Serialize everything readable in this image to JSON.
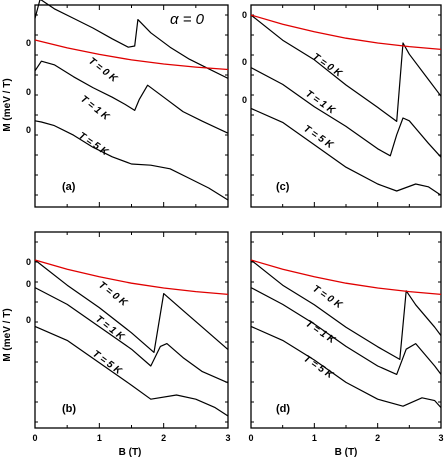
{
  "figure": {
    "alpha_label": "α = 0",
    "ylabel": "M (meV / T)",
    "xlabel": "B (T)"
  },
  "chart_data": [
    {
      "type": "line",
      "panel_label": "(a)",
      "xlabel": "",
      "ylabel": "M (meV / T)",
      "xlim": [
        0,
        3
      ],
      "xticks": [],
      "y_zero_labels": [
        "0",
        "0",
        "0"
      ],
      "curve_labels": [
        "T = 0 K",
        "T = 1 K",
        "T = 5 K"
      ],
      "series": [
        {
          "name": "T = 0 K",
          "color": "#000000",
          "x": [
            0,
            0.08,
            0.3,
            0.6,
            0.9,
            1.2,
            1.45,
            1.55,
            1.6,
            1.8,
            2.1,
            2.4,
            2.7,
            3.0
          ],
          "y": [
            0.9,
            1.7,
            1.3,
            0.9,
            0.5,
            0.05,
            -0.3,
            -0.25,
            0.85,
            0.3,
            -0.3,
            -0.8,
            -1.2,
            -1.6
          ]
        },
        {
          "name": "T = 1 K",
          "color": "#000000",
          "x": [
            0,
            0.1,
            0.3,
            0.6,
            0.9,
            1.2,
            1.4,
            1.55,
            1.62,
            1.75,
            2.0,
            2.3,
            2.6,
            3.0
          ],
          "y": [
            0.8,
            1.2,
            1.05,
            0.55,
            0.1,
            -0.3,
            -0.6,
            -0.85,
            -0.4,
            0.2,
            -0.3,
            -0.9,
            -1.3,
            -1.8
          ]
        },
        {
          "name": "T = 5 K",
          "color": "#000000",
          "x": [
            0,
            0.1,
            0.3,
            0.6,
            0.9,
            1.2,
            1.5,
            1.8,
            2.1,
            2.4,
            2.7,
            3.0
          ],
          "y": [
            0.3,
            0.25,
            0.1,
            -0.3,
            -0.8,
            -1.2,
            -1.5,
            -1.55,
            -1.7,
            -2.1,
            -2.5,
            -3.0
          ]
        },
        {
          "name": "",
          "color": "#e00000",
          "x": [
            0,
            0.5,
            1.0,
            1.5,
            2.0,
            2.5,
            3.0
          ],
          "y": [
            0,
            -0.33,
            -0.6,
            -0.83,
            -1.0,
            -1.13,
            -1.23
          ]
        }
      ]
    },
    {
      "type": "line",
      "panel_label": "(c)",
      "xlabel": "",
      "ylabel": "",
      "xlim": [
        0,
        3
      ],
      "xticks": [],
      "y_zero_labels": [
        "0",
        "0",
        "0"
      ],
      "curve_labels": [
        "T = 0 K",
        "T = 1 K",
        "T = 5 K"
      ],
      "series": [
        {
          "name": "T = 0 K",
          "color": "#000000",
          "x": [
            0,
            0.5,
            1.0,
            1.5,
            2.0,
            2.3,
            2.4,
            2.5,
            2.8,
            3.0
          ],
          "y": [
            0,
            -0.9,
            -1.6,
            -2.5,
            -3.3,
            -3.8,
            -1.0,
            -1.4,
            -2.3,
            -2.9
          ]
        },
        {
          "name": "T = 1 K",
          "color": "#000000",
          "x": [
            0,
            0.5,
            1.0,
            1.5,
            2.0,
            2.2,
            2.3,
            2.4,
            2.5,
            2.8,
            3.0
          ],
          "y": [
            -0.2,
            -0.8,
            -1.6,
            -2.3,
            -3.1,
            -3.35,
            -2.6,
            -2.0,
            -2.1,
            -2.9,
            -3.4
          ]
        },
        {
          "name": "T = 5 K",
          "color": "#000000",
          "x": [
            0,
            0.5,
            1.0,
            1.5,
            2.0,
            2.3,
            2.6,
            2.8,
            3.0
          ],
          "y": [
            -0.3,
            -0.8,
            -1.6,
            -2.4,
            -3.0,
            -3.25,
            -3.0,
            -3.1,
            -3.4
          ]
        },
        {
          "name": "",
          "color": "#e00000",
          "x": [
            0,
            0.5,
            1.0,
            1.5,
            2.0,
            2.5,
            3.0
          ],
          "y": [
            0,
            -0.33,
            -0.6,
            -0.83,
            -1.0,
            -1.13,
            -1.23
          ]
        }
      ]
    },
    {
      "type": "line",
      "panel_label": "(b)",
      "xlabel": "B (T)",
      "ylabel": "M (meV / T)",
      "xlim": [
        0,
        3
      ],
      "xticks": [
        "0",
        "1",
        "2",
        "3"
      ],
      "y_zero_labels": [
        "0",
        "0",
        "0"
      ],
      "curve_labels": [
        "T = 0 K",
        "T = 1 K",
        "T = 5 K"
      ],
      "series": [
        {
          "name": "T = 0 K",
          "color": "#000000",
          "x": [
            0,
            0.5,
            1.0,
            1.5,
            1.85,
            2.0,
            2.3,
            2.6,
            3.0
          ],
          "y": [
            0,
            -0.9,
            -1.7,
            -2.6,
            -3.3,
            -1.2,
            -1.8,
            -2.4,
            -3.2
          ]
        },
        {
          "name": "T = 1 K",
          "color": "#000000",
          "x": [
            0,
            0.5,
            1.0,
            1.5,
            1.8,
            1.95,
            2.05,
            2.3,
            2.6,
            3.0
          ],
          "y": [
            -0.2,
            -0.8,
            -1.6,
            -2.4,
            -3.0,
            -2.3,
            -2.2,
            -2.7,
            -3.2,
            -3.6
          ]
        },
        {
          "name": "T = 5 K",
          "color": "#000000",
          "x": [
            0,
            0.5,
            1.0,
            1.5,
            1.8,
            2.2,
            2.5,
            2.8,
            3.0
          ],
          "y": [
            -0.3,
            -0.8,
            -1.6,
            -2.4,
            -2.9,
            -2.75,
            -2.9,
            -3.2,
            -3.5
          ]
        },
        {
          "name": "",
          "color": "#e00000",
          "x": [
            0,
            0.5,
            1.0,
            1.5,
            2.0,
            2.5,
            3.0
          ],
          "y": [
            0,
            -0.33,
            -0.6,
            -0.83,
            -1.0,
            -1.13,
            -1.23
          ]
        }
      ]
    },
    {
      "type": "line",
      "panel_label": "(d)",
      "xlabel": "B (T)",
      "ylabel": "",
      "xlim": [
        0,
        3
      ],
      "xticks": [
        "0",
        "1",
        "2",
        "3"
      ],
      "y_zero_labels": [],
      "curve_labels": [
        "T = 0 K",
        "T = 1 K",
        "T = 5 K"
      ],
      "series": [
        {
          "name": "T = 0 K",
          "color": "#000000",
          "x": [
            0,
            0.5,
            1.0,
            1.5,
            2.0,
            2.35,
            2.45,
            2.6,
            2.9,
            3.0
          ],
          "y": [
            0,
            -0.9,
            -1.6,
            -2.4,
            -3.1,
            -3.55,
            -1.1,
            -1.6,
            -2.4,
            -2.7
          ]
        },
        {
          "name": "T = 1 K",
          "color": "#000000",
          "x": [
            0,
            0.5,
            1.0,
            1.5,
            2.0,
            2.3,
            2.45,
            2.6,
            2.9,
            3.0
          ],
          "y": [
            -0.2,
            -0.8,
            -1.5,
            -2.3,
            -3.0,
            -3.3,
            -2.4,
            -2.2,
            -3.0,
            -3.3
          ]
        },
        {
          "name": "T = 5 K",
          "color": "#000000",
          "x": [
            0,
            0.5,
            1.0,
            1.5,
            2.0,
            2.4,
            2.7,
            2.9,
            3.0
          ],
          "y": [
            -0.3,
            -0.8,
            -1.5,
            -2.3,
            -2.9,
            -3.15,
            -2.85,
            -2.95,
            -3.2
          ]
        },
        {
          "name": "",
          "color": "#e00000",
          "x": [
            0,
            0.5,
            1.0,
            1.5,
            2.0,
            2.5,
            3.0
          ],
          "y": [
            0,
            -0.33,
            -0.6,
            -0.83,
            -1.0,
            -1.13,
            -1.23
          ]
        }
      ]
    }
  ]
}
